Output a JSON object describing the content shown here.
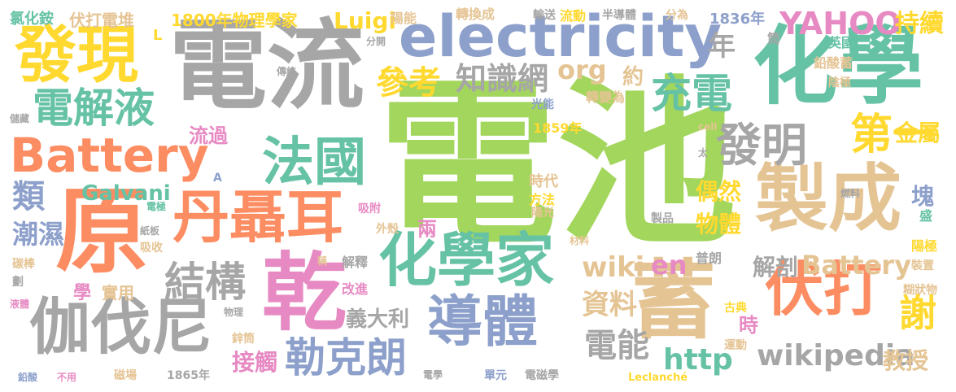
{
  "colors": {
    "green": "#a3d65c",
    "gray": "#a6a6a6",
    "teal": "#66c2a5",
    "orange": "#fc8d62",
    "blue": "#8da0cb",
    "pink": "#e78ac3",
    "yellow": "#ffd92f",
    "tan": "#e5c494"
  },
  "words": [
    {
      "text": "電池",
      "color": "green"
    },
    {
      "text": "電流",
      "color": "gray"
    },
    {
      "text": "electricity",
      "color": "blue"
    },
    {
      "text": "化學",
      "color": "teal"
    },
    {
      "text": "發現",
      "color": "yellow"
    },
    {
      "text": "Battery",
      "color": "orange"
    },
    {
      "text": "原",
      "color": "orange"
    },
    {
      "text": "製成",
      "color": "tan"
    },
    {
      "text": "蓄",
      "color": "tan"
    },
    {
      "text": "乾",
      "color": "pink"
    },
    {
      "text": "丹聶耳",
      "color": "orange"
    },
    {
      "text": "化學家",
      "color": "teal"
    },
    {
      "text": "伽伐尼",
      "color": "gray"
    },
    {
      "text": "導體",
      "color": "blue"
    },
    {
      "text": "伏打",
      "color": "orange"
    },
    {
      "text": "法國",
      "color": "teal"
    },
    {
      "text": "發明",
      "color": "gray"
    },
    {
      "text": "結構",
      "color": "gray"
    },
    {
      "text": "電解液",
      "color": "teal"
    },
    {
      "text": "勒克朗",
      "color": "blue"
    },
    {
      "text": "充電",
      "color": "teal"
    },
    {
      "text": "第一",
      "color": "yellow"
    },
    {
      "text": "知識網",
      "color": "gray"
    },
    {
      "text": "參考",
      "color": "yellow"
    },
    {
      "text": "YAHOO",
      "color": "pink"
    },
    {
      "text": "wikipedia",
      "color": "gray"
    },
    {
      "text": "Battery",
      "color": "tan"
    },
    {
      "text": "http",
      "color": "teal"
    },
    {
      "text": "電能",
      "color": "gray"
    },
    {
      "text": "wiki",
      "color": "tan"
    },
    {
      "text": "資料",
      "color": "tan"
    },
    {
      "text": "en",
      "color": "pink"
    },
    {
      "text": "org",
      "color": "tan"
    },
    {
      "text": "Galvani",
      "color": "teal"
    },
    {
      "text": "Luigi",
      "color": "yellow"
    },
    {
      "text": "謝",
      "color": "yellow"
    },
    {
      "text": "持續",
      "color": "yellow"
    },
    {
      "text": "金屬",
      "color": "yellow"
    },
    {
      "text": "年",
      "color": "gray"
    },
    {
      "text": "類",
      "color": "blue"
    },
    {
      "text": "潮濕",
      "color": "blue"
    },
    {
      "text": "偶然",
      "color": "yellow"
    },
    {
      "text": "物體",
      "color": "yellow"
    },
    {
      "text": "解剖",
      "color": "gray"
    },
    {
      "text": "塊",
      "color": "blue"
    },
    {
      "text": "教授",
      "color": "tan"
    },
    {
      "text": "義大利",
      "color": "gray"
    },
    {
      "text": "接觸",
      "color": "pink"
    },
    {
      "text": "兩",
      "color": "pink"
    },
    {
      "text": "時",
      "color": "pink"
    },
    {
      "text": "1800年物理學家",
      "color": "yellow"
    },
    {
      "text": "伏打電堆",
      "color": "tan"
    },
    {
      "text": "氯化銨",
      "color": "teal"
    },
    {
      "text": "1836年",
      "color": "blue"
    },
    {
      "text": "約",
      "color": "tan"
    },
    {
      "text": "學",
      "color": "pink"
    },
    {
      "text": "實用",
      "color": "tan"
    },
    {
      "text": "流過",
      "color": "pink"
    },
    {
      "text": "時代",
      "color": "tan"
    },
    {
      "text": "方法",
      "color": "yellow"
    },
    {
      "text": "陽能",
      "color": "tan"
    },
    {
      "text": "轉換成",
      "color": "tan"
    },
    {
      "text": "輸送",
      "color": "gray"
    },
    {
      "text": "流動",
      "color": "yellow"
    },
    {
      "text": "半導體",
      "color": "gray"
    },
    {
      "text": "分為",
      "color": "tan"
    },
    {
      "text": "筒",
      "color": "gray"
    },
    {
      "text": "英國",
      "color": "teal"
    },
    {
      "text": "鉛酸蓄",
      "color": "tan"
    },
    {
      "text": "陰極",
      "color": "tan"
    },
    {
      "text": "轉變為",
      "color": "tan"
    },
    {
      "text": "光能",
      "color": "blue"
    },
    {
      "text": "1859年",
      "color": "yellow"
    },
    {
      "text": "cell",
      "color": "tan"
    },
    {
      "text": "太",
      "color": "gray"
    },
    {
      "text": "燃料",
      "color": "gray"
    },
    {
      "text": "陽光",
      "color": "tan"
    },
    {
      "text": "製品",
      "color": "gray"
    },
    {
      "text": "盛",
      "color": "teal"
    },
    {
      "text": "陽極",
      "color": "yellow"
    },
    {
      "text": "裝置",
      "color": "tan"
    },
    {
      "text": "糊狀物",
      "color": "tan"
    },
    {
      "text": "普朗",
      "color": "gray"
    },
    {
      "text": "古典",
      "color": "yellow"
    },
    {
      "text": "運動",
      "color": "tan"
    },
    {
      "text": "Leclanché",
      "color": "yellow"
    },
    {
      "text": "單元",
      "color": "blue"
    },
    {
      "text": "電磁學",
      "color": "gray"
    },
    {
      "text": "電學",
      "color": "gray"
    },
    {
      "text": "磁場",
      "color": "tan"
    },
    {
      "text": "1865年",
      "color": "gray"
    },
    {
      "text": "不用",
      "color": "pink"
    },
    {
      "text": "鉛酸",
      "color": "blue"
    },
    {
      "text": "液體",
      "color": "pink"
    },
    {
      "text": "劃",
      "color": "gray"
    },
    {
      "text": "碳棒",
      "color": "tan"
    },
    {
      "text": "吸收",
      "color": "tan"
    },
    {
      "text": "紙板",
      "color": "gray"
    },
    {
      "text": "電極",
      "color": "teal"
    },
    {
      "text": "吸附",
      "color": "pink"
    },
    {
      "text": "外殼",
      "color": "tan"
    },
    {
      "text": "材料",
      "color": "tan"
    },
    {
      "text": "稱",
      "color": "tan"
    },
    {
      "text": "解釋",
      "color": "gray"
    },
    {
      "text": "改進",
      "color": "pink"
    },
    {
      "text": "物理",
      "color": "gray"
    },
    {
      "text": "鋅筒",
      "color": "tan"
    },
    {
      "text": "儲藏",
      "color": "gray"
    },
    {
      "text": "傳統",
      "color": "gray"
    },
    {
      "text": "L",
      "color": "yellow"
    },
    {
      "text": "A",
      "color": "blue"
    },
    {
      "text": "分開",
      "color": "gray"
    }
  ]
}
